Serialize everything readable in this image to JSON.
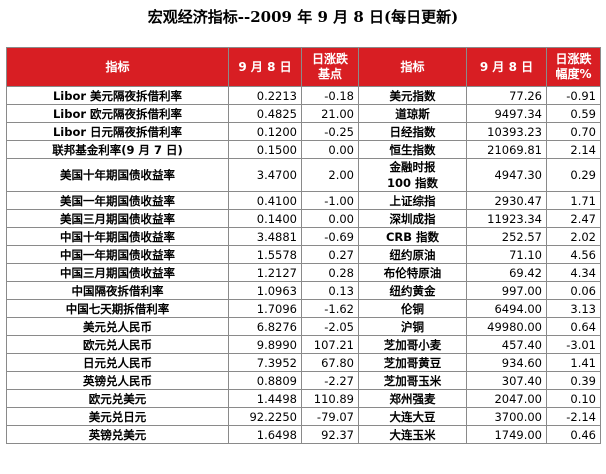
{
  "title": "宏观经济指标--2009 年 9 月 8 日(每日更新)",
  "headers": {
    "indicator1": "指标",
    "date1": "9 月 8 日",
    "change1_line1": "日涨跌",
    "change1_line2": "基点",
    "indicator2": "指标",
    "date2": "9 月 8 日",
    "change2_line1": "日涨跌",
    "change2_line2": "幅度%"
  },
  "rows": [
    {
      "left_name": "Libor 美元隔夜拆借利率",
      "left_value": "0.2213",
      "left_change": "-0.18",
      "right_name": "美元指数",
      "right_value": "77.26",
      "right_change": "-0.91"
    },
    {
      "left_name": "Libor 欧元隔夜拆借利率",
      "left_value": "0.4825",
      "left_change": "21.00",
      "right_name": "道琼斯",
      "right_value": "9497.34",
      "right_change": "0.59"
    },
    {
      "left_name": "Libor 日元隔夜拆借利率",
      "left_value": "0.1200",
      "left_change": "-0.25",
      "right_name": "日经指数",
      "right_value": "10393.23",
      "right_change": "0.70"
    },
    {
      "left_name": "联邦基金利率(9 月 7 日)",
      "left_value": "0.1500",
      "left_change": "0.00",
      "right_name": "恒生指数",
      "right_value": "21069.81",
      "right_change": "2.14"
    },
    {
      "left_name": "美国十年期国债收益率",
      "left_value": "3.4700",
      "left_change": "2.00",
      "right_name": "金融时报\n100 指数",
      "right_value": "4947.30",
      "right_change": "0.29",
      "tall": true
    },
    {
      "left_name": "美国一年期国债收益率",
      "left_value": "0.4100",
      "left_change": "-1.00",
      "right_name": "上证综指",
      "right_value": "2930.47",
      "right_change": "1.71"
    },
    {
      "left_name": "美国三月期国债收益率",
      "left_value": "0.1400",
      "left_change": "0.00",
      "right_name": "深圳成指",
      "right_value": "11923.34",
      "right_change": "2.47"
    },
    {
      "left_name": "中国十年期国债收益率",
      "left_value": "3.4881",
      "left_change": "-0.69",
      "right_name": "CRB 指数",
      "right_value": "252.57",
      "right_change": "2.02"
    },
    {
      "left_name": "中国一年期国债收益率",
      "left_value": "1.5578",
      "left_change": "0.27",
      "right_name": "纽约原油",
      "right_value": "71.10",
      "right_change": "4.56"
    },
    {
      "left_name": "中国三月期国债收益率",
      "left_value": "1.2127",
      "left_change": "0.28",
      "right_name": "布伦特原油",
      "right_value": "69.42",
      "right_change": "4.34"
    },
    {
      "left_name": "中国隔夜拆借利率",
      "left_value": "1.0963",
      "left_change": "0.13",
      "right_name": "纽约黄金",
      "right_value": "997.00",
      "right_change": "0.06"
    },
    {
      "left_name": "中国七天期拆借利率",
      "left_value": "1.7096",
      "left_change": "-1.62",
      "right_name": "伦铜",
      "right_value": "6494.00",
      "right_change": "3.13"
    },
    {
      "left_name": "美元兑人民币",
      "left_value": "6.8276",
      "left_change": "-2.05",
      "right_name": "沪铜",
      "right_value": "49980.00",
      "right_change": "0.64"
    },
    {
      "left_name": "欧元兑人民币",
      "left_value": "9.8990",
      "left_change": "107.21",
      "right_name": "芝加哥小麦",
      "right_value": "457.40",
      "right_change": "-3.01"
    },
    {
      "left_name": "日元兑人民币",
      "left_value": "7.3952",
      "left_change": "67.80",
      "right_name": "芝加哥黄豆",
      "right_value": "934.60",
      "right_change": "1.41"
    },
    {
      "left_name": "英镑兑人民币",
      "left_value": "0.8809",
      "left_change": "-2.27",
      "right_name": "芝加哥玉米",
      "right_value": "307.40",
      "right_change": "0.39"
    },
    {
      "left_name": "欧元兑美元",
      "left_value": "1.4498",
      "left_change": "110.89",
      "right_name": "郑州强麦",
      "right_value": "2047.00",
      "right_change": "0.10"
    },
    {
      "left_name": "美元兑日元",
      "left_value": "92.2250",
      "left_change": "-79.07",
      "right_name": "大连大豆",
      "right_value": "3700.00",
      "right_change": "-2.14"
    },
    {
      "left_name": "英镑兑美元",
      "left_value": "1.6498",
      "left_change": "92.37",
      "right_name": "大连玉米",
      "right_value": "1749.00",
      "right_change": "0.46"
    }
  ]
}
